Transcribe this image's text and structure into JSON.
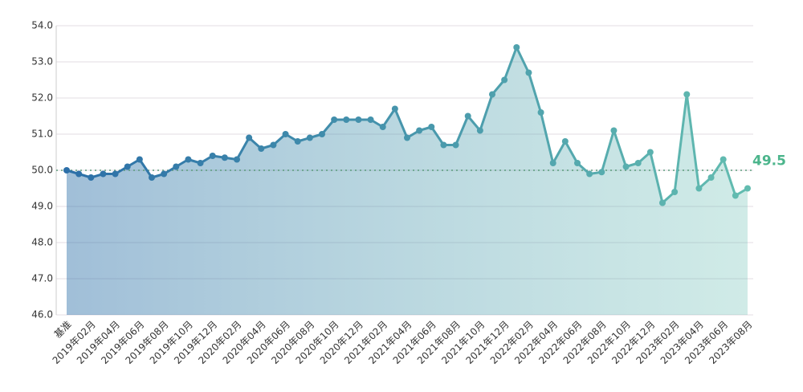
{
  "chart_data": {
    "type": "line",
    "categories": [
      "基准",
      null,
      "2019年02月",
      null,
      "2019年04月",
      null,
      "2019年06月",
      null,
      "2019年08月",
      null,
      "2019年10月",
      null,
      "2019年12月",
      null,
      "2020年02月",
      null,
      "2020年04月",
      null,
      "2020年06月",
      null,
      "2020年08月",
      null,
      "2020年10月",
      null,
      "2020年12月",
      null,
      "2021年02月",
      null,
      "2021年04月",
      null,
      "2021年06月",
      null,
      "2021年08月",
      null,
      "2021年10月",
      null,
      "2021年12月",
      null,
      "2022年02月",
      null,
      "2022年04月",
      null,
      "2022年06月",
      null,
      "2022年08月",
      null,
      "2022年10月",
      null,
      "2022年12月",
      null,
      "2023年02月",
      null,
      "2023年04月",
      null,
      "2023年06月",
      null,
      "2023年08月"
    ],
    "values": [
      50.0,
      49.9,
      49.8,
      49.9,
      49.9,
      50.1,
      50.3,
      49.8,
      49.9,
      50.1,
      50.3,
      50.2,
      50.4,
      50.35,
      50.3,
      50.9,
      50.6,
      50.7,
      51.0,
      50.8,
      50.9,
      51.0,
      51.4,
      51.4,
      51.4,
      51.4,
      51.2,
      51.7,
      50.9,
      51.1,
      51.2,
      50.7,
      50.7,
      51.5,
      51.1,
      52.1,
      52.5,
      53.4,
      52.7,
      51.6,
      50.2,
      50.8,
      50.2,
      49.9,
      49.95,
      51.1,
      50.1,
      50.2,
      50.5,
      49.1,
      49.4,
      52.1,
      49.5,
      49.8,
      50.3,
      49.3,
      49.5
    ],
    "color_start": "#2b6ea8",
    "color_end": "#63bdb0",
    "label_color": "#4cb58c",
    "reference_line": 50,
    "ylim": [
      46,
      54
    ],
    "yticks": [
      {
        "value": 46,
        "label": "46.0"
      },
      {
        "value": 47,
        "label": "47.0"
      },
      {
        "value": 48,
        "label": "48.0"
      },
      {
        "value": 49,
        "label": "49.0"
      },
      {
        "value": 50,
        "label": "50.0"
      },
      {
        "value": 51,
        "label": "51.0"
      },
      {
        "value": 52,
        "label": "52.0"
      },
      {
        "value": 53,
        "label": "53.0"
      },
      {
        "value": 54,
        "label": "54.0"
      }
    ],
    "grid": true
  }
}
